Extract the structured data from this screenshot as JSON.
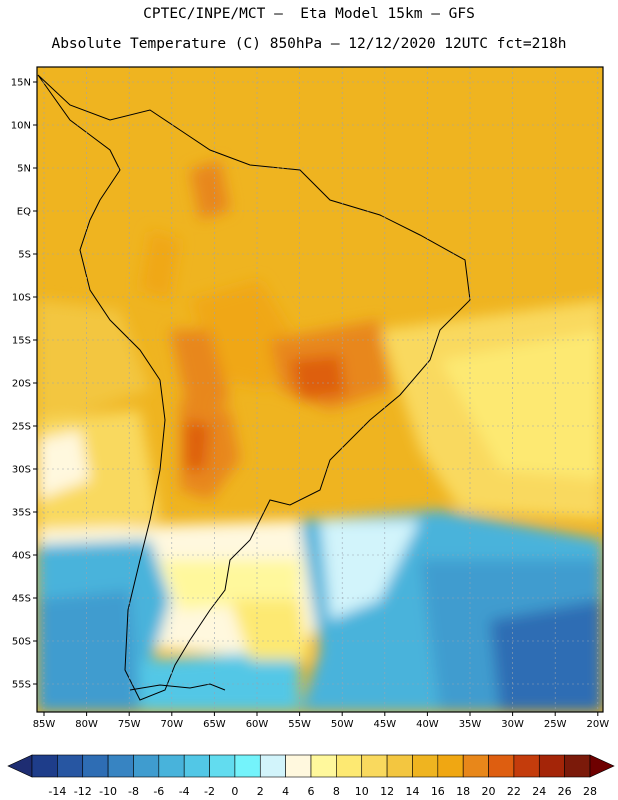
{
  "header": {
    "line1": "CPTEC/INPE/MCT –  Eta Model 15km – GFS",
    "line2": "Absolute Temperature (C) 850hPa – 12/12/2020 12UTC fct=218h"
  },
  "map": {
    "lat_labels": [
      "15N",
      "10N",
      "5N",
      "EQ",
      "5S",
      "10S",
      "15S",
      "20S",
      "25S",
      "30S",
      "35S",
      "40S",
      "45S",
      "50S",
      "55S"
    ],
    "lon_labels": [
      "85W",
      "80W",
      "75W",
      "70W",
      "65W",
      "60W",
      "55W",
      "50W",
      "45W",
      "40W",
      "35W",
      "30W",
      "25W",
      "20W"
    ]
  },
  "colorbar": {
    "labels": [
      "-14",
      "-12",
      "-10",
      "-8",
      "-6",
      "-4",
      "-2",
      "0",
      "2",
      "4",
      "6",
      "8",
      "10",
      "12",
      "14",
      "16",
      "18",
      "20",
      "22",
      "24",
      "26",
      "28"
    ],
    "colors": [
      "#1e3d8a",
      "#2756a2",
      "#2e6db4",
      "#3784c2",
      "#3f9ccf",
      "#48b3db",
      "#52c7e6",
      "#62dcef",
      "#74f3fb",
      "#d2f4fb",
      "#fff8de",
      "#fff89c",
      "#fde972",
      "#f9d95e",
      "#f3c640",
      "#efb420",
      "#f0a712",
      "#e8871a",
      "#de5e10",
      "#c43c0c",
      "#a42508",
      "#7b1a0a"
    ],
    "low_color": "#1e2d72",
    "high_color": "#6e0000"
  }
}
